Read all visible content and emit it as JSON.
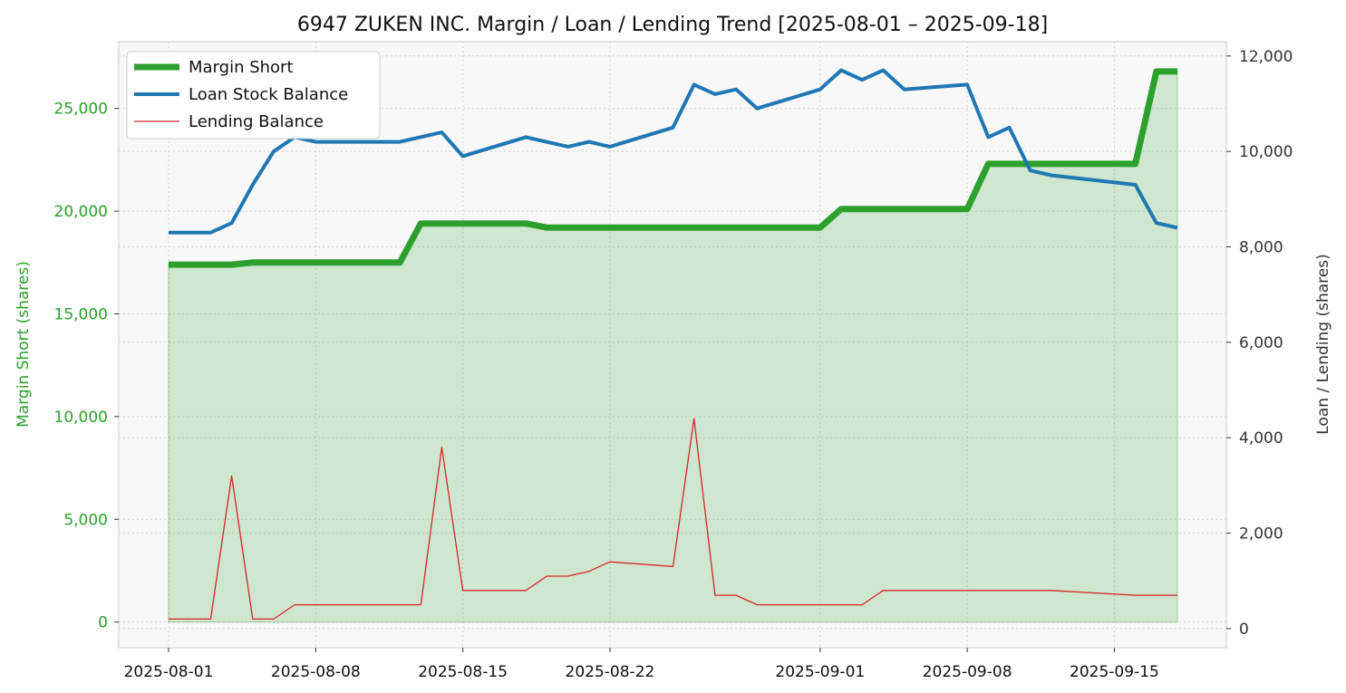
{
  "chart_data": {
    "type": "line",
    "title": "6947 ZUKEN INC. Margin / Loan / Lending Trend [2025-08-01 – 2025-09-18]",
    "ylabel_left": "Margin Short (shares)",
    "ylabel_right": "Loan / Lending (shares)",
    "ylim_left": [
      -1250,
      28250
    ],
    "ylim_right": [
      -400,
      12300
    ],
    "yticks_left": [
      0,
      5000,
      10000,
      15000,
      20000,
      25000
    ],
    "yticks_right": [
      0,
      2000,
      4000,
      6000,
      8000,
      10000,
      12000
    ],
    "xticks": [
      "2025-08-01",
      "2025-08-08",
      "2025-08-15",
      "2025-08-22",
      "2025-09-01",
      "2025-09-08",
      "2025-09-15"
    ],
    "grid": true,
    "legend_position": "top-left",
    "series": [
      {
        "name": "Margin Short",
        "axis": "left",
        "color": "#2ca02c",
        "fill": true,
        "points": [
          [
            "2025-08-01",
            17400
          ],
          [
            "2025-08-04",
            17400
          ],
          [
            "2025-08-05",
            17500
          ],
          [
            "2025-08-11",
            17500
          ],
          [
            "2025-08-12",
            17500
          ],
          [
            "2025-08-13",
            19400
          ],
          [
            "2025-08-18",
            19400
          ],
          [
            "2025-08-19",
            19200
          ],
          [
            "2025-09-01",
            19200
          ],
          [
            "2025-09-02",
            20100
          ],
          [
            "2025-09-08",
            20100
          ],
          [
            "2025-09-09",
            22300
          ],
          [
            "2025-09-16",
            22300
          ],
          [
            "2025-09-17",
            26800
          ],
          [
            "2025-09-18",
            26800
          ]
        ]
      },
      {
        "name": "Loan Stock Balance",
        "axis": "right",
        "color": "#1f77b4",
        "points": [
          [
            "2025-08-01",
            8300
          ],
          [
            "2025-08-02",
            8300
          ],
          [
            "2025-08-03",
            8300
          ],
          [
            "2025-08-04",
            8500
          ],
          [
            "2025-08-05",
            9300
          ],
          [
            "2025-08-06",
            10000
          ],
          [
            "2025-08-07",
            10300
          ],
          [
            "2025-08-08",
            10200
          ],
          [
            "2025-08-12",
            10200
          ],
          [
            "2025-08-14",
            10400
          ],
          [
            "2025-08-15",
            9900
          ],
          [
            "2025-08-18",
            10300
          ],
          [
            "2025-08-20",
            10100
          ],
          [
            "2025-08-21",
            10200
          ],
          [
            "2025-08-22",
            10100
          ],
          [
            "2025-08-25",
            10500
          ],
          [
            "2025-08-26",
            11400
          ],
          [
            "2025-08-27",
            11200
          ],
          [
            "2025-08-28",
            11300
          ],
          [
            "2025-08-29",
            10900
          ],
          [
            "2025-09-01",
            11300
          ],
          [
            "2025-09-02",
            11700
          ],
          [
            "2025-09-03",
            11500
          ],
          [
            "2025-09-04",
            11700
          ],
          [
            "2025-09-05",
            11300
          ],
          [
            "2025-09-08",
            11400
          ],
          [
            "2025-09-09",
            10300
          ],
          [
            "2025-09-10",
            10500
          ],
          [
            "2025-09-11",
            9600
          ],
          [
            "2025-09-12",
            9500
          ],
          [
            "2025-09-16",
            9300
          ],
          [
            "2025-09-17",
            8500
          ],
          [
            "2025-09-18",
            8400
          ]
        ]
      },
      {
        "name": "Lending Balance",
        "axis": "right",
        "color": "#d62728",
        "points": [
          [
            "2025-08-01",
            200
          ],
          [
            "2025-08-03",
            200
          ],
          [
            "2025-08-04",
            3200
          ],
          [
            "2025-08-05",
            200
          ],
          [
            "2025-08-06",
            200
          ],
          [
            "2025-08-07",
            500
          ],
          [
            "2025-08-13",
            500
          ],
          [
            "2025-08-14",
            3800
          ],
          [
            "2025-08-15",
            800
          ],
          [
            "2025-08-18",
            800
          ],
          [
            "2025-08-19",
            1100
          ],
          [
            "2025-08-20",
            1100
          ],
          [
            "2025-08-21",
            1200
          ],
          [
            "2025-08-22",
            1400
          ],
          [
            "2025-08-25",
            1300
          ],
          [
            "2025-08-26",
            4400
          ],
          [
            "2025-08-27",
            700
          ],
          [
            "2025-08-28",
            700
          ],
          [
            "2025-08-29",
            500
          ],
          [
            "2025-09-03",
            500
          ],
          [
            "2025-09-04",
            800
          ],
          [
            "2025-09-12",
            800
          ],
          [
            "2025-09-16",
            700
          ],
          [
            "2025-09-18",
            700
          ]
        ]
      }
    ]
  }
}
